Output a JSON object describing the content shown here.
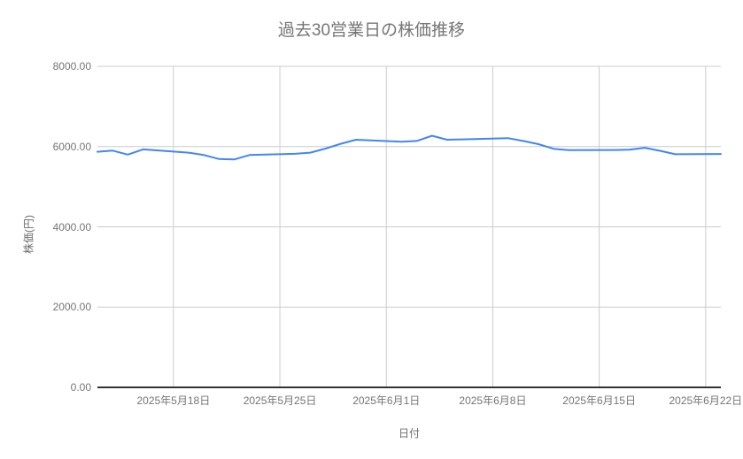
{
  "chart_data": {
    "type": "line",
    "title": "過去30営業日の株価推移",
    "xlabel": "日付",
    "ylabel": "株価(円)",
    "ylim": [
      0,
      8000
    ],
    "grid": true,
    "legend_position": "none",
    "x_domain": {
      "start": "2025-05-13",
      "end": "2025-06-23"
    },
    "y_ticks": [
      {
        "value": 8000,
        "label": "8000.00"
      },
      {
        "value": 6000,
        "label": "6000.00"
      },
      {
        "value": 4000,
        "label": "4000.00"
      },
      {
        "value": 2000,
        "label": "2000.00"
      },
      {
        "value": 0,
        "label": "0.00"
      }
    ],
    "x_ticks": [
      {
        "date": "2025-05-18",
        "label": "2025年5月18日"
      },
      {
        "date": "2025-05-25",
        "label": "2025年5月25日"
      },
      {
        "date": "2025-06-01",
        "label": "2025年6月1日"
      },
      {
        "date": "2025-06-08",
        "label": "2025年6月8日"
      },
      {
        "date": "2025-06-15",
        "label": "2025年6月15日"
      },
      {
        "date": "2025-06-22",
        "label": "2025年6月22日"
      }
    ],
    "series": [
      {
        "name": "株価",
        "dates": [
          "2025-05-13",
          "2025-05-14",
          "2025-05-15",
          "2025-05-16",
          "2025-05-19",
          "2025-05-20",
          "2025-05-21",
          "2025-05-22",
          "2025-05-23",
          "2025-05-26",
          "2025-05-27",
          "2025-05-28",
          "2025-05-29",
          "2025-05-30",
          "2025-06-02",
          "2025-06-03",
          "2025-06-04",
          "2025-06-05",
          "2025-06-06",
          "2025-06-09",
          "2025-06-10",
          "2025-06-11",
          "2025-06-12",
          "2025-06-13",
          "2025-06-16",
          "2025-06-17",
          "2025-06-18",
          "2025-06-19",
          "2025-06-20",
          "2025-06-23"
        ],
        "values": [
          5870,
          5900,
          5800,
          5930,
          5850,
          5790,
          5690,
          5680,
          5790,
          5820,
          5850,
          5950,
          6070,
          6170,
          6120,
          6140,
          6270,
          6170,
          6180,
          6210,
          6140,
          6060,
          5945,
          5910,
          5915,
          5925,
          5970,
          5895,
          5810,
          5815
        ]
      }
    ],
    "colors": {
      "line": "#4285f4",
      "grid": "#cccccc",
      "axis": "#333333",
      "text": "#757575"
    }
  }
}
